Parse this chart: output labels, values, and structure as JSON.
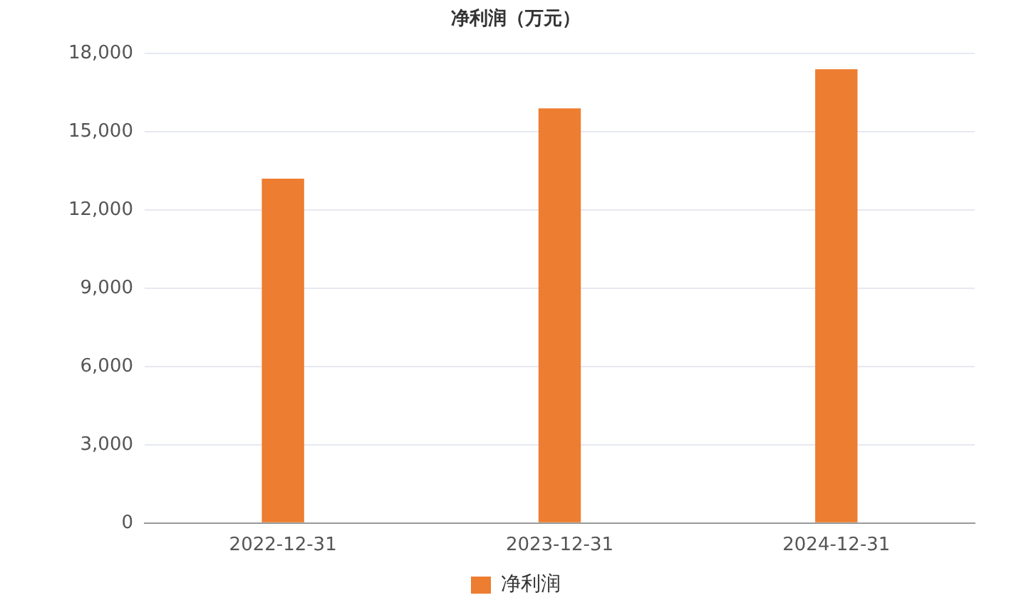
{
  "chart_data": {
    "type": "bar",
    "title": "净利润（万元）",
    "categories": [
      "2022-12-31",
      "2023-12-31",
      "2024-12-31"
    ],
    "series": [
      {
        "name": "净利润",
        "color": "#ed7d31",
        "values": [
          13200,
          15900,
          17400
        ]
      }
    ],
    "ylim": [
      0,
      18000
    ],
    "yticks": [
      0,
      {
        "value": 3000,
        "label": "3,000"
      },
      {
        "value": 6000,
        "label": "6,000"
      },
      {
        "value": 9000,
        "label": "9,000"
      },
      {
        "value": 12000,
        "label": "12,000"
      },
      {
        "value": 15000,
        "label": "15,000"
      },
      {
        "value": 18000,
        "label": "18,000"
      }
    ],
    "grid": "y",
    "legend": "bottom"
  }
}
